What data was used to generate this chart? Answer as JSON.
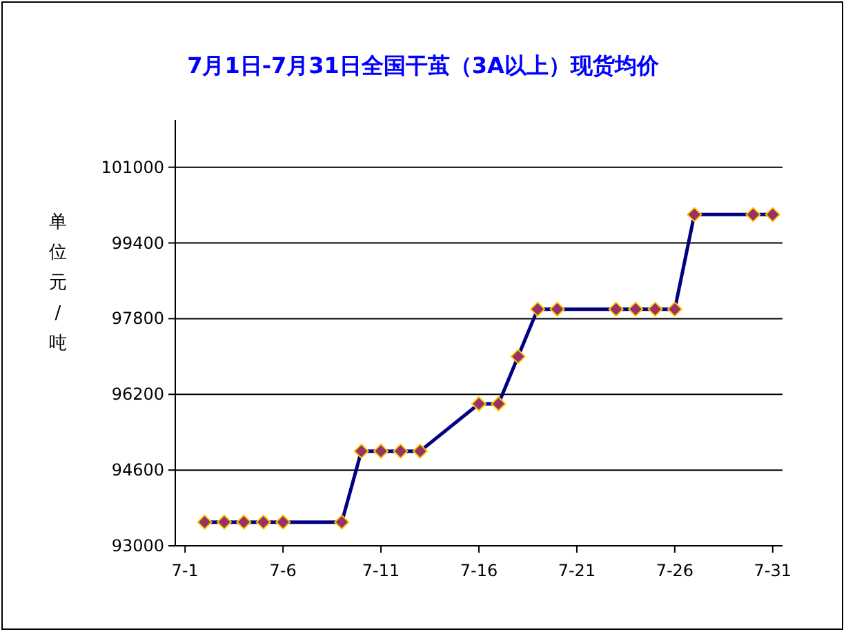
{
  "chart_data": {
    "type": "line",
    "title": "7月1日-7月31日全国干茧（3A以上）现货均价",
    "ylabel": "单位元/吨",
    "categories": [
      "7-1",
      null,
      null,
      null,
      null,
      "7-6",
      null,
      null,
      null,
      null,
      "7-11",
      null,
      null,
      null,
      null,
      "7-16",
      null,
      null,
      null,
      null,
      "7-21",
      null,
      null,
      null,
      null,
      "7-26",
      null,
      null,
      null,
      null,
      "7-31"
    ],
    "series": [
      {
        "color": "#000080",
        "values": [
          null,
          93500,
          93500,
          93500,
          93500,
          93500,
          null,
          null,
          93500,
          95000,
          95000,
          95000,
          95000,
          null,
          null,
          96000,
          96000,
          97000,
          98000,
          98000,
          null,
          null,
          98000,
          98000,
          98000,
          98000,
          100000,
          null,
          null,
          100000,
          100000
        ]
      }
    ],
    "ylim": [
      93000,
      102000
    ],
    "yticks": [
      93000,
      94600,
      96200,
      97800,
      99400,
      101000
    ],
    "grid": "y",
    "marker": "diamond",
    "line_style": "solid"
  }
}
